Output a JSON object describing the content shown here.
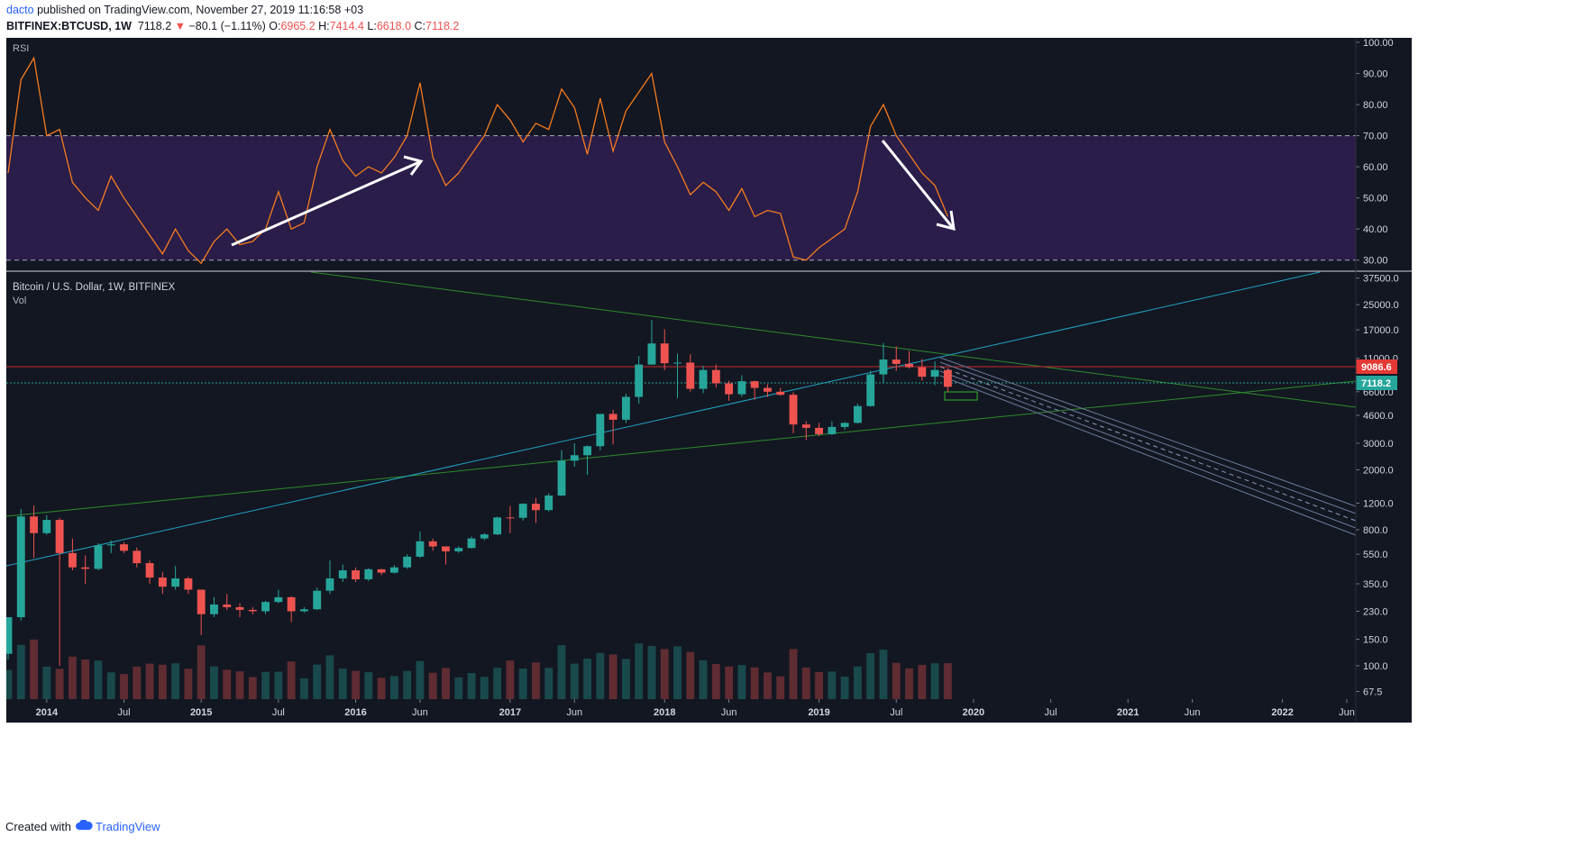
{
  "header": {
    "author": "dacto",
    "published": "published on TradingView.com, November 27, 2019 11:16:58 +03",
    "symbol": "BITFINEX:BTCUSD, 1W",
    "last": "7118.2",
    "change": "−80.1 (−1.11%)",
    "o_label": "O:",
    "o_value": "6965.2",
    "h_label": "H:",
    "h_value": "7414.4",
    "l_label": "L:",
    "l_value": "6618.0",
    "c_label": "C:",
    "c_value": "7118.2"
  },
  "rsi_pane": {
    "label": "RSI",
    "ticks": [
      "100.00",
      "90.00",
      "80.00",
      "70.00",
      "60.00",
      "50.00",
      "40.00",
      "30.00"
    ],
    "band": [
      30,
      70
    ]
  },
  "price_pane": {
    "title": "Bitcoin / U.S. Dollar, 1W, BITFINEX",
    "vol_label": "Vol",
    "ticks": [
      "37500.0",
      "25000.0",
      "17000.0",
      "11000.0",
      "6600.0",
      "4600.0",
      "3000.0",
      "2000.0",
      "1200.0",
      "800.0",
      "550.0",
      "350.0",
      "230.0",
      "150.0",
      "100.0",
      "67.5"
    ],
    "price_label_red": "9086.6",
    "price_label_green": "7118.2"
  },
  "time_axis": [
    "2014",
    "Jul",
    "2015",
    "Jul",
    "2016",
    "Jun",
    "2017",
    "Jun",
    "2018",
    "Jun",
    "2019",
    "Jul",
    "2020",
    "Jul",
    "2021",
    "Jun",
    "2022",
    "Jun"
  ],
  "footer": {
    "created": "Created with",
    "brand": "TradingView"
  },
  "colors": {
    "background": "#131722",
    "rsi_band": "#2a1d4a",
    "rsi_line": "#f57c1f",
    "up": "#26a69a",
    "down": "#ef5350",
    "fib_channel": "#6a7a9a",
    "trend_blue": "#22a3c2",
    "trend_green": "#2e8b2e",
    "arrow": "#ffffff"
  },
  "chart_data": [
    {
      "type": "line",
      "series": [
        {
          "name": "RSI",
          "points": [
            [
              "2013-10",
              58
            ],
            [
              "2013-11",
              88
            ],
            [
              "2013-12",
              95
            ],
            [
              "2014-01",
              70
            ],
            [
              "2014-02",
              72
            ],
            [
              "2014-03",
              55
            ],
            [
              "2014-04",
              50
            ],
            [
              "2014-05",
              46
            ],
            [
              "2014-06",
              57
            ],
            [
              "2014-07",
              50
            ],
            [
              "2014-08",
              44
            ],
            [
              "2014-09",
              38
            ],
            [
              "2014-10",
              32
            ],
            [
              "2014-11",
              40
            ],
            [
              "2014-12",
              33
            ],
            [
              "2015-01",
              29
            ],
            [
              "2015-02",
              36
            ],
            [
              "2015-03",
              40
            ],
            [
              "2015-04",
              35
            ],
            [
              "2015-05",
              36
            ],
            [
              "2015-06",
              40
            ],
            [
              "2015-07",
              52
            ],
            [
              "2015-08",
              40
            ],
            [
              "2015-09",
              42
            ],
            [
              "2015-10",
              60
            ],
            [
              "2015-11",
              72
            ],
            [
              "2015-12",
              62
            ],
            [
              "2016-01",
              57
            ],
            [
              "2016-02",
              60
            ],
            [
              "2016-03",
              58
            ],
            [
              "2016-04",
              63
            ],
            [
              "2016-05",
              70
            ],
            [
              "2016-06",
              87
            ],
            [
              "2016-07",
              63
            ],
            [
              "2016-08",
              54
            ],
            [
              "2016-09",
              58
            ],
            [
              "2016-10",
              64
            ],
            [
              "2016-11",
              70
            ],
            [
              "2016-12",
              80
            ],
            [
              "2017-01",
              75
            ],
            [
              "2017-02",
              68
            ],
            [
              "2017-03",
              74
            ],
            [
              "2017-04",
              72
            ],
            [
              "2017-05",
              85
            ],
            [
              "2017-06",
              79
            ],
            [
              "2017-07",
              64
            ],
            [
              "2017-08",
              82
            ],
            [
              "2017-09",
              65
            ],
            [
              "2017-10",
              78
            ],
            [
              "2017-11",
              84
            ],
            [
              "2017-12",
              90
            ],
            [
              "2018-01",
              68
            ],
            [
              "2018-02",
              60
            ],
            [
              "2018-03",
              51
            ],
            [
              "2018-04",
              55
            ],
            [
              "2018-05",
              52
            ],
            [
              "2018-06",
              46
            ],
            [
              "2018-07",
              53
            ],
            [
              "2018-08",
              44
            ],
            [
              "2018-09",
              46
            ],
            [
              "2018-10",
              45
            ],
            [
              "2018-11",
              31
            ],
            [
              "2018-12",
              30
            ],
            [
              "2019-01",
              34
            ],
            [
              "2019-02",
              37
            ],
            [
              "2019-03",
              40
            ],
            [
              "2019-04",
              52
            ],
            [
              "2019-05",
              73
            ],
            [
              "2019-06",
              80
            ],
            [
              "2019-07",
              70
            ],
            [
              "2019-08",
              64
            ],
            [
              "2019-09",
              58
            ],
            [
              "2019-10",
              54
            ],
            [
              "2019-11",
              44
            ]
          ]
        }
      ],
      "ylim": [
        25,
        100
      ],
      "bands": [
        30,
        70
      ]
    },
    {
      "type": "candlestick",
      "yscale": "log",
      "ylim": [
        60,
        40000
      ],
      "ohlc": [
        [
          "2013-10",
          120,
          140,
          110,
          210
        ],
        [
          "2013-11",
          210,
          1100,
          200,
          980
        ],
        [
          "2013-12",
          980,
          1160,
          520,
          760
        ],
        [
          "2014-01",
          760,
          1000,
          740,
          930
        ],
        [
          "2014-02",
          930,
          960,
          100,
          560
        ],
        [
          "2014-03",
          560,
          700,
          430,
          450
        ],
        [
          "2014-04",
          450,
          540,
          350,
          440
        ],
        [
          "2014-05",
          440,
          650,
          430,
          630
        ],
        [
          "2014-06",
          630,
          680,
          560,
          640
        ],
        [
          "2014-07",
          640,
          660,
          560,
          580
        ],
        [
          "2014-08",
          580,
          610,
          450,
          480
        ],
        [
          "2014-09",
          480,
          500,
          350,
          385
        ],
        [
          "2014-10",
          385,
          420,
          300,
          335
        ],
        [
          "2014-11",
          335,
          460,
          320,
          380
        ],
        [
          "2014-12",
          380,
          390,
          300,
          320
        ],
        [
          "2015-01",
          320,
          320,
          160,
          220
        ],
        [
          "2015-02",
          220,
          285,
          210,
          255
        ],
        [
          "2015-03",
          255,
          300,
          235,
          245
        ],
        [
          "2015-04",
          245,
          260,
          210,
          235
        ],
        [
          "2015-05",
          235,
          245,
          220,
          230
        ],
        [
          "2015-06",
          230,
          270,
          220,
          265
        ],
        [
          "2015-07",
          265,
          320,
          260,
          285
        ],
        [
          "2015-08",
          285,
          290,
          195,
          230
        ],
        [
          "2015-09",
          230,
          245,
          225,
          237
        ],
        [
          "2015-10",
          237,
          330,
          235,
          315
        ],
        [
          "2015-11",
          315,
          500,
          300,
          380
        ],
        [
          "2015-12",
          380,
          470,
          360,
          430
        ],
        [
          "2016-01",
          430,
          450,
          360,
          375
        ],
        [
          "2016-02",
          375,
          445,
          365,
          437
        ],
        [
          "2016-03",
          437,
          440,
          400,
          415
        ],
        [
          "2016-04",
          415,
          465,
          410,
          450
        ],
        [
          "2016-05",
          450,
          550,
          440,
          530
        ],
        [
          "2016-06",
          530,
          780,
          520,
          670
        ],
        [
          "2016-07",
          670,
          700,
          580,
          620
        ],
        [
          "2016-08",
          620,
          620,
          470,
          575
        ],
        [
          "2016-09",
          575,
          620,
          560,
          605
        ],
        [
          "2016-10",
          605,
          720,
          600,
          700
        ],
        [
          "2016-11",
          700,
          760,
          680,
          745
        ],
        [
          "2016-12",
          745,
          980,
          740,
          965
        ],
        [
          "2017-01",
          965,
          1150,
          760,
          960
        ],
        [
          "2017-02",
          960,
          1200,
          920,
          1190
        ],
        [
          "2017-03",
          1190,
          1300,
          890,
          1080
        ],
        [
          "2017-04",
          1080,
          1400,
          1060,
          1350
        ],
        [
          "2017-05",
          1350,
          2700,
          1340,
          2300
        ],
        [
          "2017-06",
          2300,
          3000,
          2100,
          2500
        ],
        [
          "2017-07",
          2500,
          2900,
          1850,
          2870
        ],
        [
          "2017-08",
          2870,
          4700,
          2700,
          4700
        ],
        [
          "2017-09",
          4700,
          5000,
          2950,
          4300
        ],
        [
          "2017-10",
          4300,
          6400,
          4100,
          6100
        ],
        [
          "2017-11",
          6100,
          11400,
          5500,
          10000
        ],
        [
          "2017-12",
          10000,
          19800,
          10000,
          13800
        ],
        [
          "2018-01",
          13800,
          17200,
          9200,
          10200
        ],
        [
          "2018-02",
          10200,
          11800,
          6000,
          10300
        ],
        [
          "2018-03",
          10300,
          11700,
          6600,
          6900
        ],
        [
          "2018-04",
          6900,
          9800,
          6450,
          9200
        ],
        [
          "2018-05",
          9200,
          10000,
          7050,
          7500
        ],
        [
          "2018-06",
          7500,
          7800,
          5750,
          6350
        ],
        [
          "2018-07",
          6350,
          8500,
          6100,
          7750
        ],
        [
          "2018-08",
          7750,
          7800,
          5850,
          7000
        ],
        [
          "2018-09",
          7000,
          7400,
          6100,
          6600
        ],
        [
          "2018-10",
          6600,
          7000,
          6200,
          6300
        ],
        [
          "2018-11",
          6300,
          6550,
          3500,
          4000
        ],
        [
          "2018-12",
          4000,
          4200,
          3150,
          3800
        ],
        [
          "2019-01",
          3800,
          4100,
          3350,
          3450
        ],
        [
          "2019-02",
          3450,
          4200,
          3400,
          3850
        ],
        [
          "2019-03",
          3850,
          4150,
          3700,
          4100
        ],
        [
          "2019-04",
          4100,
          5500,
          4050,
          5300
        ],
        [
          "2019-05",
          5300,
          9100,
          5250,
          8600
        ],
        [
          "2019-06",
          8600,
          13900,
          7500,
          10800
        ],
        [
          "2019-07",
          10800,
          13200,
          9100,
          10100
        ],
        [
          "2019-08",
          10100,
          12300,
          9400,
          9600
        ],
        [
          "2019-09",
          9600,
          10900,
          7800,
          8300
        ],
        [
          "2019-10",
          8300,
          10500,
          7300,
          9200
        ],
        [
          "2019-11",
          9200,
          9500,
          6600,
          7118
        ]
      ]
    }
  ]
}
